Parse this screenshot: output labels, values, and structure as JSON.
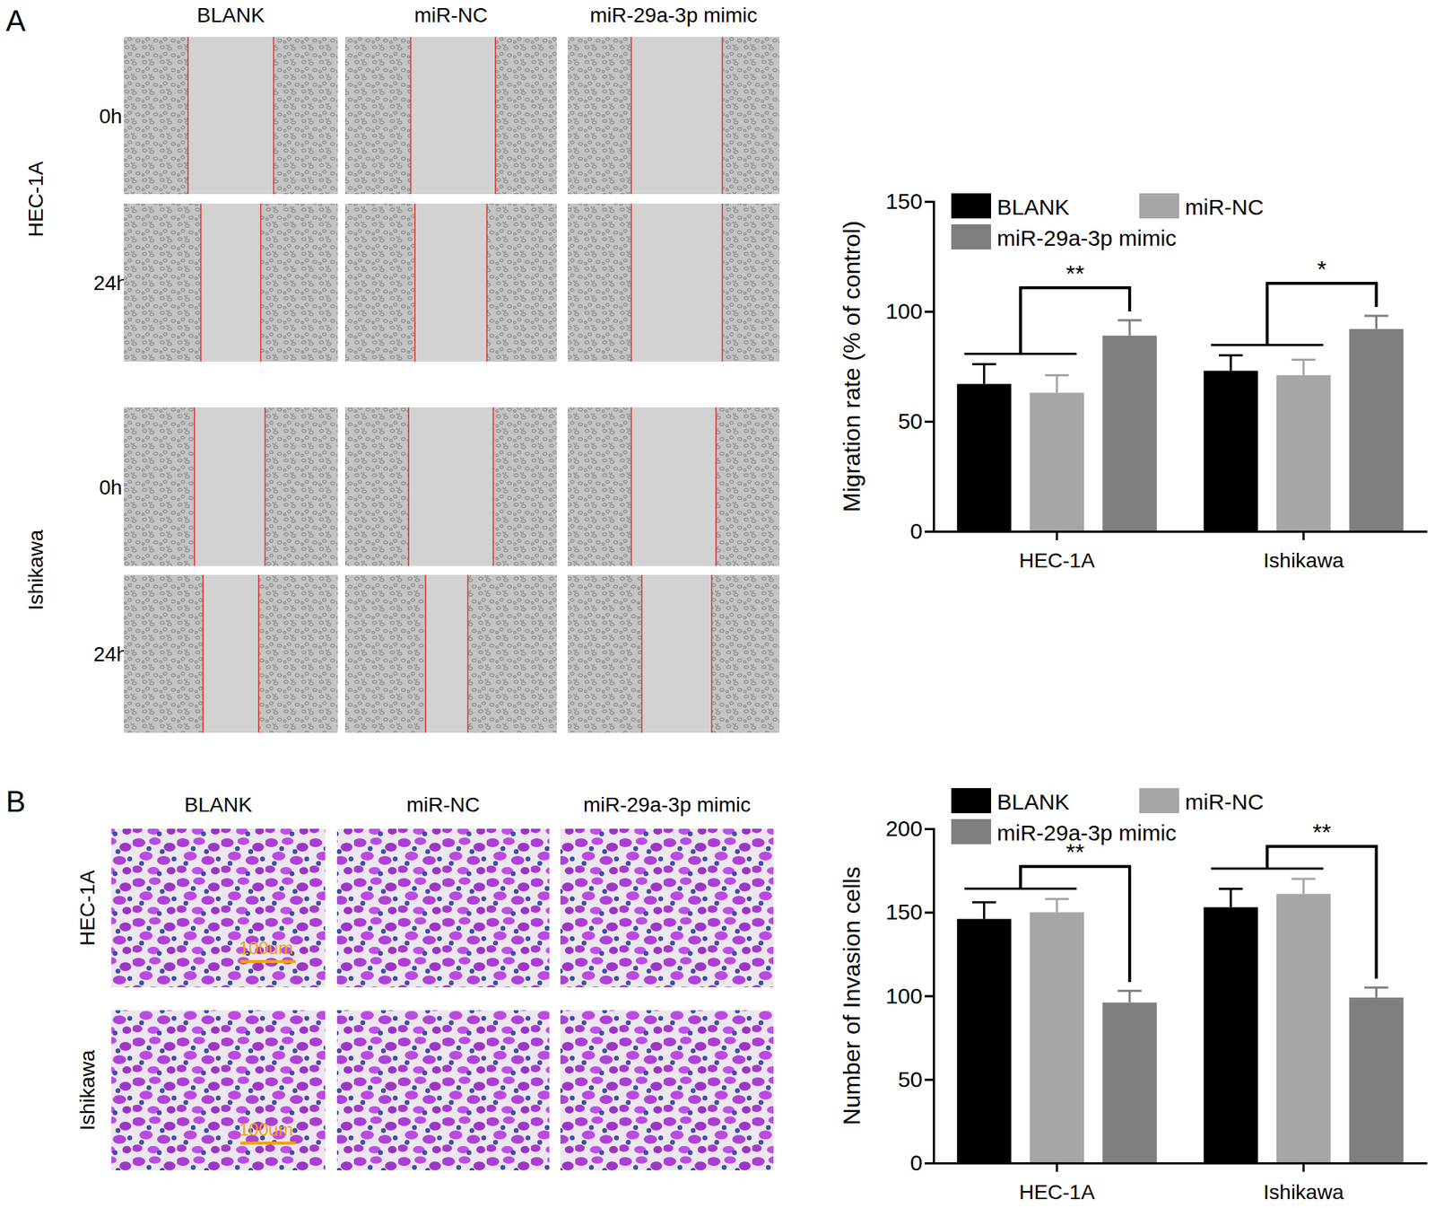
{
  "panels": [
    {
      "label": "A",
      "columns": [
        "BLANK",
        "miR-NC",
        "miR-29a-3p mimic"
      ],
      "cell_lines": [
        "HEC-1A",
        "Ishikawa"
      ],
      "times": [
        "0h",
        "24h"
      ]
    },
    {
      "label": "B",
      "columns": [
        "BLANK",
        "miR-NC",
        "miR-29a-3p mimic"
      ],
      "cell_lines": [
        "HEC-1A",
        "Ishikawa"
      ],
      "scale_bar": "100um"
    }
  ],
  "chart_data": [
    {
      "type": "bar",
      "y_label": "Migration rate (% of control)",
      "categories": [
        "HEC-1A",
        "Ishikawa"
      ],
      "series": [
        {
          "name": "BLANK",
          "color": "#000000",
          "values": [
            67,
            73
          ],
          "errors": [
            9,
            7
          ]
        },
        {
          "name": "miR-NC",
          "color": "#a6a6a6",
          "values": [
            63,
            71
          ],
          "errors": [
            8,
            7
          ]
        },
        {
          "name": "miR-29a-3p mimic",
          "color": "#7f7f7f",
          "values": [
            89,
            92
          ],
          "errors": [
            7,
            6
          ]
        }
      ],
      "ylim": [
        0,
        150
      ],
      "yticks": [
        0,
        50,
        100,
        150
      ],
      "legend": "top",
      "annotations": [
        {
          "text": "**",
          "category": "HEC-1A"
        },
        {
          "text": "*",
          "category": "Ishikawa"
        }
      ]
    },
    {
      "type": "bar",
      "y_label": "Number of Invasion cells",
      "categories": [
        "HEC-1A",
        "Ishikawa"
      ],
      "series": [
        {
          "name": "BLANK",
          "color": "#000000",
          "values": [
            146,
            153
          ],
          "errors": [
            10,
            11
          ]
        },
        {
          "name": "miR-NC",
          "color": "#a6a6a6",
          "values": [
            150,
            161
          ],
          "errors": [
            8,
            9
          ]
        },
        {
          "name": "miR-29a-3p mimic",
          "color": "#7f7f7f",
          "values": [
            96,
            99
          ],
          "errors": [
            7,
            6
          ]
        }
      ],
      "ylim": [
        0,
        200
      ],
      "yticks": [
        0,
        50,
        100,
        150,
        200
      ],
      "legend": "top",
      "annotations": [
        {
          "text": "**",
          "category": "HEC-1A"
        },
        {
          "text": "**",
          "category": "Ishikawa"
        }
      ]
    }
  ]
}
